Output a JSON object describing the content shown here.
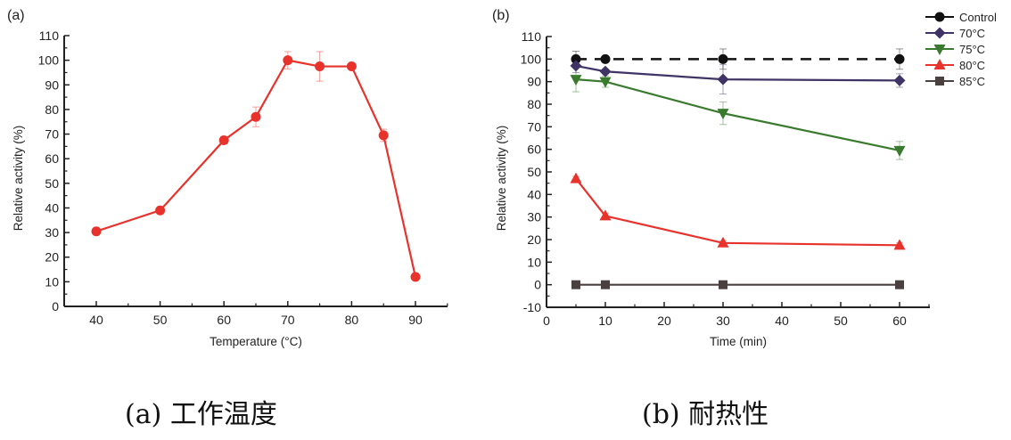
{
  "captions": {
    "a": "(a) 工作温度",
    "b": "(b) 耐热性"
  },
  "chart_data": [
    {
      "type": "line",
      "panel_label": "(a)",
      "title": "",
      "xlabel": "Temperature (°C)",
      "ylabel": "Relative activity (%)",
      "xlim": [
        35,
        95
      ],
      "ylim": [
        0,
        110
      ],
      "xticks": [
        40,
        50,
        60,
        70,
        80,
        90
      ],
      "yticks": [
        0,
        10,
        20,
        30,
        40,
        50,
        60,
        70,
        80,
        90,
        100,
        110
      ],
      "grid": false,
      "series": [
        {
          "name": "Relative activity",
          "color": "#e8322c",
          "marker": "circle",
          "x": [
            40,
            50,
            60,
            65,
            70,
            75,
            80,
            85,
            90
          ],
          "y": [
            30.5,
            39,
            67.5,
            77,
            100,
            97.5,
            97.5,
            69.5,
            12
          ],
          "error": [
            0,
            0,
            1.5,
            4,
            3.5,
            6,
            0,
            2.5,
            0
          ]
        }
      ]
    },
    {
      "type": "line",
      "panel_label": "(b)",
      "title": "",
      "xlabel": "Time (min)",
      "ylabel": "Relative activity (%)",
      "xlim": [
        0,
        65
      ],
      "ylim": [
        -10,
        110
      ],
      "xticks": [
        0,
        10,
        20,
        30,
        40,
        50,
        60
      ],
      "yticks": [
        -10,
        0,
        10,
        20,
        30,
        40,
        50,
        60,
        70,
        80,
        90,
        100,
        110
      ],
      "grid": false,
      "legend_position": "top-right",
      "series": [
        {
          "name": "Control",
          "color": "#111111",
          "marker": "circle",
          "dashed": true,
          "x": [
            5,
            10,
            30,
            60
          ],
          "y": [
            100,
            100,
            100,
            100
          ],
          "error": [
            3.5,
            1,
            4.5,
            4.5
          ]
        },
        {
          "name": "70°C",
          "color": "#3f3465",
          "marker": "diamond",
          "dashed": false,
          "x": [
            5,
            10,
            30,
            60
          ],
          "y": [
            97,
            94.5,
            91,
            90.5
          ],
          "error": [
            3,
            1,
            6.5,
            3
          ]
        },
        {
          "name": "75°C",
          "color": "#3a7a2e",
          "marker": "triangle-down",
          "dashed": false,
          "x": [
            5,
            10,
            30,
            60
          ],
          "y": [
            91,
            90,
            76,
            59.5
          ],
          "error": [
            5.5,
            2.5,
            5,
            4
          ]
        },
        {
          "name": "80°C",
          "color": "#e8322c",
          "marker": "triangle-up",
          "dashed": false,
          "x": [
            5,
            10,
            30,
            60
          ],
          "y": [
            47,
            30.5,
            18.5,
            17.5
          ],
          "error": [
            1,
            1,
            1,
            1
          ]
        },
        {
          "name": "85°C",
          "color": "#4a4040",
          "marker": "square",
          "dashed": false,
          "x": [
            5,
            10,
            30,
            60
          ],
          "y": [
            0,
            0,
            0,
            0
          ],
          "error": [
            0,
            0,
            0,
            0
          ]
        }
      ]
    }
  ]
}
